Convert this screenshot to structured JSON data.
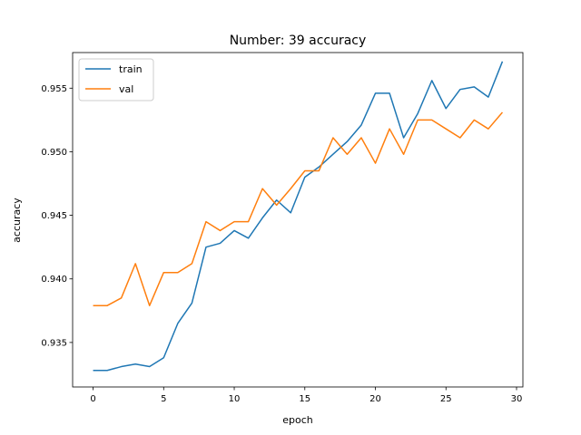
{
  "chart_data": {
    "type": "line",
    "title": "Number: 39 accuracy",
    "xlabel": "epoch",
    "ylabel": "accuracy",
    "xlim": [
      -1.45,
      30.45
    ],
    "ylim": [
      0.9315,
      0.9578
    ],
    "xticks": [
      0,
      5,
      10,
      15,
      20,
      25,
      30
    ],
    "xtick_labels": [
      "0",
      "5",
      "10",
      "15",
      "20",
      "25",
      "30"
    ],
    "yticks": [
      0.935,
      0.94,
      0.945,
      0.95,
      0.955
    ],
    "ytick_labels": [
      "0.935",
      "0.940",
      "0.945",
      "0.950",
      "0.955"
    ],
    "grid": false,
    "legend_position": "upper-left",
    "x": [
      0,
      1,
      2,
      3,
      4,
      5,
      6,
      7,
      8,
      9,
      10,
      11,
      12,
      13,
      14,
      15,
      16,
      17,
      18,
      19,
      20,
      21,
      22,
      23,
      24,
      25,
      26,
      27,
      28,
      29
    ],
    "series": [
      {
        "name": "train",
        "color": "#1f77b4",
        "values": [
          0.9328,
          0.9328,
          0.9331,
          0.9333,
          0.9331,
          0.9338,
          0.9365,
          0.9381,
          0.9425,
          0.9428,
          0.9438,
          0.9432,
          0.9448,
          0.9462,
          0.9452,
          0.948,
          0.9488,
          0.9498,
          0.9508,
          0.9521,
          0.9546,
          0.9546,
          0.9511,
          0.953,
          0.9556,
          0.9534,
          0.9549,
          0.9551,
          0.9543,
          0.9571
        ]
      },
      {
        "name": "val",
        "color": "#ff7f0e",
        "values": [
          0.9379,
          0.9379,
          0.9385,
          0.9412,
          0.9379,
          0.9405,
          0.9405,
          0.9412,
          0.9445,
          0.9438,
          0.9445,
          0.9445,
          0.9471,
          0.9458,
          0.9471,
          0.9485,
          0.9485,
          0.9511,
          0.9498,
          0.9511,
          0.9491,
          0.9518,
          0.9498,
          0.9525,
          0.9525,
          0.9518,
          0.9511,
          0.9525,
          0.9518,
          0.9531
        ]
      }
    ]
  }
}
